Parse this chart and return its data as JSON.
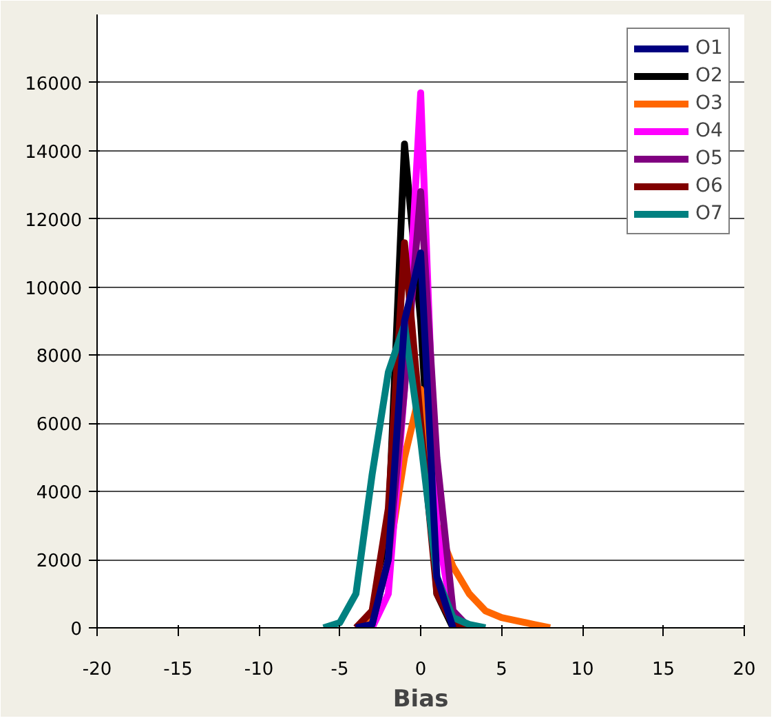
{
  "chart_data": {
    "type": "line",
    "xlabel": "Bias",
    "xlim": [
      -20,
      20
    ],
    "xticks": [
      -20,
      -15,
      -10,
      -5,
      0,
      5,
      10,
      15,
      20
    ],
    "ylim": [
      0,
      18000
    ],
    "yticks": [
      0,
      2000,
      4000,
      6000,
      8000,
      10000,
      12000,
      14000,
      16000
    ],
    "grid": "y",
    "legend": "top right",
    "line_style": "solid",
    "series": [
      {
        "name": "O1",
        "color": "#000080",
        "x": [
          -4,
          -3,
          -2,
          -1,
          0,
          1,
          2
        ],
        "values": [
          0,
          100,
          2000,
          9000,
          11000,
          1500,
          0
        ]
      },
      {
        "name": "O2",
        "color": "#000000",
        "x": [
          -4,
          -3,
          -2,
          -1,
          0,
          1,
          2
        ],
        "values": [
          0,
          300,
          3000,
          14200,
          9000,
          1000,
          0
        ]
      },
      {
        "name": "O3",
        "color": "#ff6600",
        "x": [
          -4,
          -3,
          -2,
          -1,
          0,
          1,
          2,
          3,
          4,
          5,
          6,
          7,
          8
        ],
        "values": [
          0,
          300,
          2000,
          5000,
          7000,
          3000,
          1800,
          1000,
          500,
          300,
          200,
          100,
          0
        ]
      },
      {
        "name": "O4",
        "color": "#ff00ff",
        "x": [
          -3,
          -2,
          -1,
          0,
          1,
          2,
          3
        ],
        "values": [
          0,
          1000,
          7000,
          15700,
          3000,
          200,
          0
        ]
      },
      {
        "name": "O5",
        "color": "#800080",
        "x": [
          -4,
          -3,
          -2,
          -1,
          0,
          1,
          2,
          3
        ],
        "values": [
          0,
          100,
          2000,
          7000,
          12800,
          5000,
          500,
          0
        ]
      },
      {
        "name": "O6",
        "color": "#800000",
        "x": [
          -4,
          -3,
          -2,
          -1,
          0,
          1,
          2,
          3
        ],
        "values": [
          0,
          500,
          3500,
          11300,
          6000,
          1000,
          100,
          0
        ]
      },
      {
        "name": "O7",
        "color": "#008080",
        "x": [
          -6,
          -5,
          -4,
          -3,
          -2,
          -1,
          0,
          1,
          2,
          3,
          4
        ],
        "values": [
          0,
          150,
          1000,
          4500,
          7500,
          8900,
          5500,
          1500,
          300,
          100,
          0
        ]
      }
    ]
  }
}
